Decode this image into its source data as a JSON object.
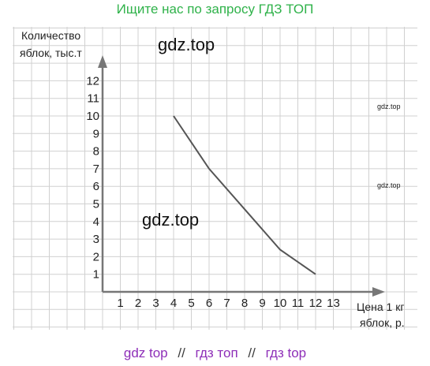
{
  "header": {
    "text": "Ищите нас по запросу ГДЗ ТОП"
  },
  "watermarks": {
    "big_1": "gdz.top",
    "big_2": "gdz.top",
    "small_1": "gdz.top",
    "small_2": "gdz.top"
  },
  "footer": {
    "items": [
      "gdz top",
      "гдз топ",
      "гдз top"
    ],
    "separator": "//"
  },
  "chart_data": {
    "type": "line",
    "ylabel_lines": [
      "Количество",
      "яблок, тыс.т"
    ],
    "xlabel_lines": [
      "Цена 1 кг",
      "яблок, р."
    ],
    "x_ticks": [
      1,
      2,
      3,
      4,
      5,
      6,
      7,
      8,
      9,
      10,
      11,
      12,
      13
    ],
    "y_ticks": [
      1,
      2,
      3,
      4,
      5,
      6,
      7,
      8,
      9,
      10,
      11,
      12
    ],
    "xlim": [
      0,
      15
    ],
    "ylim": [
      0,
      14.5
    ],
    "grid": true,
    "series": [
      {
        "x": [
          4,
          6,
          8,
          10,
          12
        ],
        "y": [
          10,
          7,
          4.7,
          2.4,
          1
        ]
      }
    ],
    "colors": {
      "line": "#555555",
      "axis": "#777777",
      "grid": "#d0d0d0"
    }
  }
}
